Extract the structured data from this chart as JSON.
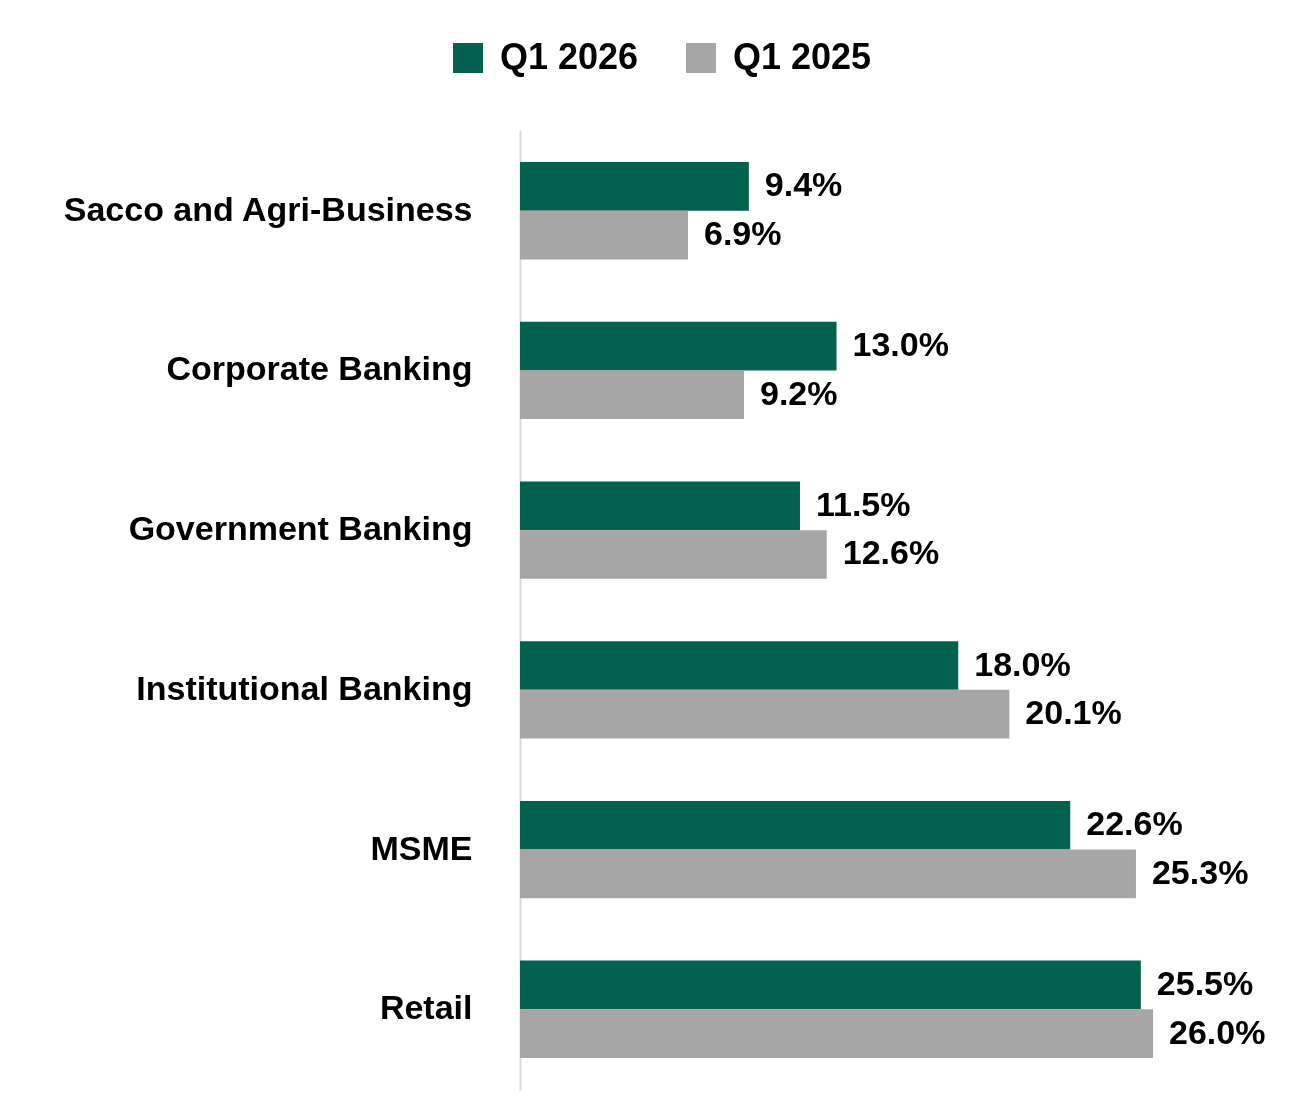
{
  "chart_data": {
    "type": "bar",
    "orientation": "horizontal",
    "categories": [
      "Sacco and Agri-Business",
      "Corporate Banking",
      "Government Banking",
      "Institutional Banking",
      "MSME",
      "Retail"
    ],
    "series": [
      {
        "name": "Q1 2026",
        "color": "#02614f",
        "values": [
          9.4,
          13.0,
          11.5,
          18.0,
          22.6,
          25.5
        ],
        "value_labels": [
          "9.4%",
          "13.0%",
          "11.5%",
          "18.0%",
          "22.6%",
          "25.5%"
        ]
      },
      {
        "name": "Q1 2025",
        "color": "#a6a6a6",
        "values": [
          6.9,
          9.2,
          12.6,
          20.1,
          25.3,
          26.0
        ],
        "value_labels": [
          "6.9%",
          "9.2%",
          "12.6%",
          "20.1%",
          "25.3%",
          "26.0%"
        ]
      }
    ],
    "tick_labels": "y",
    "legend": "top"
  }
}
